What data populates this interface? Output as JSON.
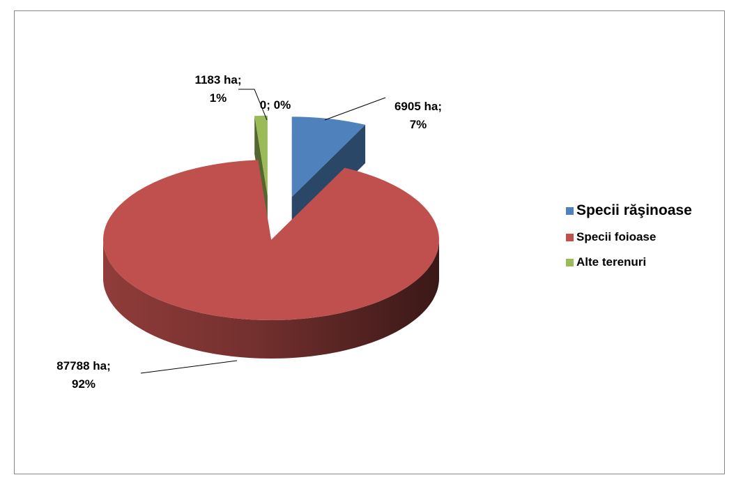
{
  "chart_data": {
    "type": "pie3d",
    "categories": [
      "Specii răşinoase",
      "Specii foioase",
      "Alte terenuri",
      null
    ],
    "values": [
      6905,
      87788,
      1183,
      0
    ],
    "value_labels": [
      "6905 ha; 7%",
      "87788 ha; 92%",
      "1183 ha; 1%",
      "0; 0%"
    ],
    "colors": [
      "#4f81bd",
      "#c0504d",
      "#9bbb59",
      "#8064a2"
    ],
    "legend": "right"
  }
}
